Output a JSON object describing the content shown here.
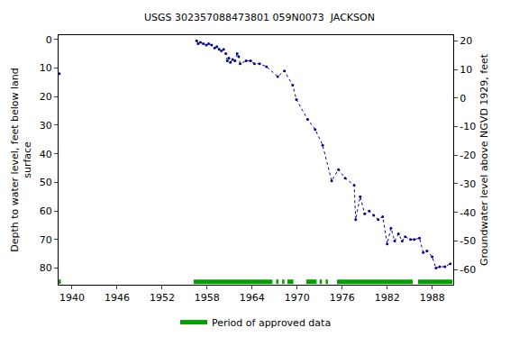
{
  "chart_data": {
    "type": "line",
    "title": "USGS 302357088473801 059N0073  JACKSON",
    "ylabel": "Depth to water level, feet below land\nsurface",
    "y2label": "Groundwater level above NGVD 1929, feet",
    "xlim": [
      1938.2,
      1990.8
    ],
    "xticks": [
      1940,
      1946,
      1952,
      1958,
      1964,
      1970,
      1976,
      1982,
      1988
    ],
    "ylim": [
      85.8,
      -1.5
    ],
    "yticks": [
      0,
      10,
      20,
      30,
      40,
      50,
      60,
      70,
      80
    ],
    "y2lim": [
      -65.3,
      22
    ],
    "y2ticks": [
      20,
      10,
      0,
      -10,
      -20,
      -30,
      -40,
      -50,
      -60
    ],
    "grid": false,
    "series": [
      {
        "name": "Depth to water level",
        "color": "#00008b",
        "marker": "dot",
        "line_style": "dot",
        "x": [
          1938.3,
          1947,
          1956.6,
          1956.8,
          1957.1,
          1957.5,
          1957.9,
          1958.2,
          1958.6,
          1959.0,
          1959.3,
          1959.6,
          1959.9,
          1960.2,
          1960.5,
          1960.7,
          1960.9,
          1961.1,
          1961.4,
          1961.7,
          1962.0,
          1962.2,
          1962.4,
          1963.2,
          1963.8,
          1964.3,
          1965.0,
          1965.9,
          1967.4,
          1968.3,
          1969.4,
          1969.9,
          1971.4,
          1972.4,
          1973.4,
          1974.6,
          1975.5,
          1976.4,
          1977.6,
          1977.8,
          1978.4,
          1979.0,
          1979.6,
          1980.2,
          1980.8,
          1981.4,
          1982.0,
          1982.5,
          1983.0,
          1983.5,
          1984.0,
          1984.4,
          1985.1,
          1985.6,
          1986.3,
          1986.8,
          1987.3,
          1988.0,
          1988.5,
          1989.0,
          1989.7,
          1990.4
        ],
        "values": [
          12,
          null,
          0.5,
          1.5,
          1,
          1.5,
          2,
          1.5,
          2,
          3,
          2.5,
          3.5,
          4,
          3.5,
          5,
          7.5,
          6.5,
          8,
          7,
          7.5,
          5,
          6,
          8.5,
          7.5,
          7.5,
          8.5,
          8.5,
          9.5,
          13,
          11,
          16,
          21,
          28,
          31.5,
          37,
          49.5,
          45.5,
          48.5,
          51,
          63,
          55,
          61,
          60,
          61.5,
          63,
          62,
          71.5,
          66,
          70.5,
          68,
          70.5,
          69,
          70,
          70,
          69.5,
          74.5,
          74,
          76,
          80,
          79.5,
          79.5,
          78.5
        ]
      }
    ],
    "approved_periods": {
      "name": "Period of approved data",
      "color": "#00a000",
      "ranges": [
        [
          1938.2,
          1938.5
        ],
        [
          1956.2,
          1966.7
        ],
        [
          1967.2,
          1967.5
        ],
        [
          1968.0,
          1968.3
        ],
        [
          1968.7,
          1969.5
        ],
        [
          1971.2,
          1972.6
        ],
        [
          1973.0,
          1973.3
        ],
        [
          1973.8,
          1974.1
        ],
        [
          1975.3,
          1985.4
        ],
        [
          1986.1,
          1990.7
        ]
      ]
    },
    "legend": "bottom"
  }
}
